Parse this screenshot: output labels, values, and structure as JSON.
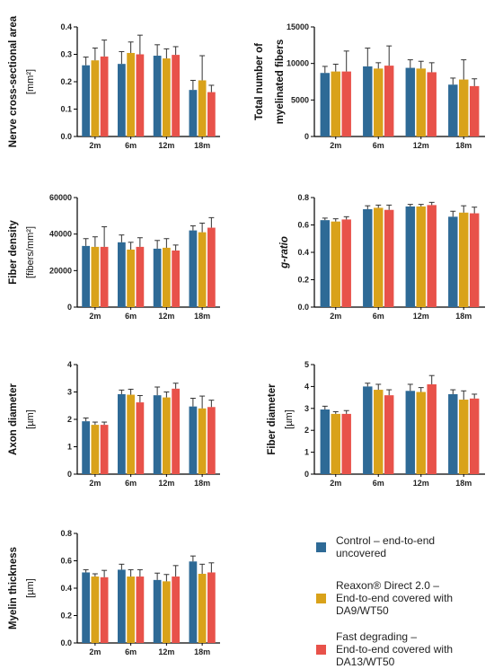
{
  "colors": {
    "control": "#2e6a96",
    "reaxon": "#d9a21a",
    "fast": "#e8524a",
    "axis": "#000000"
  },
  "legend": [
    {
      "series_index": 0,
      "lines": [
        "Control – end-to-end",
        "uncovered"
      ]
    },
    {
      "series_index": 1,
      "lines": [
        "Reaxon® Direct 2.0 –",
        "End-to-end covered with",
        "DA9/WT50"
      ]
    },
    {
      "series_index": 2,
      "lines": [
        "Fast degrading –",
        "End-to-end covered with",
        "DA13/WT50"
      ]
    }
  ],
  "chart_data": [
    {
      "type": "bar",
      "ylabel": [
        "Nerve cross-sectional area"
      ],
      "yunit": "[mm²]",
      "categories": [
        "2m",
        "6m",
        "12m",
        "18m"
      ],
      "ylim": [
        0,
        0.4
      ],
      "yticks": [
        "0.0",
        "0.1",
        "0.2",
        "0.3",
        "0.4"
      ],
      "series": [
        {
          "values": [
            0.26,
            0.265,
            0.295,
            0.17
          ],
          "errors": [
            0.03,
            0.045,
            0.04,
            0.035
          ]
        },
        {
          "values": [
            0.278,
            0.305,
            0.285,
            0.205
          ],
          "errors": [
            0.045,
            0.04,
            0.035,
            0.09
          ]
        },
        {
          "values": [
            0.292,
            0.3,
            0.298,
            0.162
          ],
          "errors": [
            0.06,
            0.07,
            0.03,
            0.025
          ]
        }
      ]
    },
    {
      "type": "bar",
      "ylabel": [
        "Total number of",
        "myelinated fibers"
      ],
      "yunit": "",
      "categories": [
        "2m",
        "6m",
        "12m",
        "18m"
      ],
      "ylim": [
        0,
        15000
      ],
      "yticks": [
        "0",
        "5000",
        "10000",
        "15000"
      ],
      "series": [
        {
          "values": [
            8700,
            9600,
            9400,
            7100
          ],
          "errors": [
            900,
            2500,
            1100,
            900
          ]
        },
        {
          "values": [
            8900,
            9300,
            9300,
            7800
          ],
          "errors": [
            1000,
            800,
            1000,
            2700
          ]
        },
        {
          "values": [
            8900,
            9700,
            8800,
            6900
          ],
          "errors": [
            2800,
            2700,
            1300,
            1000
          ]
        }
      ]
    },
    {
      "type": "bar",
      "ylabel": [
        "Fiber density"
      ],
      "yunit": "[fibers/mm²]",
      "categories": [
        "2m",
        "6m",
        "12m",
        "18m"
      ],
      "ylim": [
        0,
        60000
      ],
      "yticks": [
        "0",
        "20000",
        "40000",
        "60000"
      ],
      "series": [
        {
          "values": [
            33500,
            35500,
            32000,
            42000
          ],
          "errors": [
            4000,
            4000,
            4500,
            2500
          ]
        },
        {
          "values": [
            33000,
            31500,
            32500,
            41000
          ],
          "errors": [
            5500,
            4000,
            5000,
            5000
          ]
        },
        {
          "values": [
            33000,
            33000,
            31000,
            43500
          ],
          "errors": [
            11000,
            5000,
            3000,
            5500
          ]
        }
      ]
    },
    {
      "type": "bar",
      "ylabel": [
        "g-ratio"
      ],
      "yunit": "",
      "categories": [
        "2m",
        "6m",
        "12m",
        "18m"
      ],
      "ylim": [
        0,
        0.8
      ],
      "yticks": [
        "0.0",
        "0.2",
        "0.4",
        "0.6",
        "0.8"
      ],
      "series": [
        {
          "values": [
            0.635,
            0.715,
            0.735,
            0.66
          ],
          "errors": [
            0.015,
            0.025,
            0.015,
            0.04
          ]
        },
        {
          "values": [
            0.625,
            0.725,
            0.735,
            0.69
          ],
          "errors": [
            0.02,
            0.02,
            0.015,
            0.05
          ]
        },
        {
          "values": [
            0.64,
            0.71,
            0.745,
            0.685
          ],
          "errors": [
            0.02,
            0.035,
            0.02,
            0.045
          ]
        }
      ]
    },
    {
      "type": "bar",
      "ylabel": [
        "Axon diameter"
      ],
      "yunit": "[µm]",
      "categories": [
        "2m",
        "6m",
        "12m",
        "18m"
      ],
      "ylim": [
        0,
        4
      ],
      "yticks": [
        "0",
        "1",
        "2",
        "3",
        "4"
      ],
      "series": [
        {
          "values": [
            1.93,
            2.92,
            2.88,
            2.47
          ],
          "errors": [
            0.12,
            0.15,
            0.3,
            0.3
          ]
        },
        {
          "values": [
            1.8,
            2.9,
            2.8,
            2.4
          ],
          "errors": [
            0.1,
            0.2,
            0.2,
            0.45
          ]
        },
        {
          "values": [
            1.8,
            2.62,
            3.12,
            2.45
          ],
          "errors": [
            0.1,
            0.25,
            0.2,
            0.25
          ]
        }
      ]
    },
    {
      "type": "bar",
      "ylabel": [
        "Fiber diameter"
      ],
      "yunit": "[µm]",
      "categories": [
        "2m",
        "6m",
        "12m",
        "18m"
      ],
      "ylim": [
        0,
        5
      ],
      "yticks": [
        "0",
        "1",
        "2",
        "3",
        "4",
        "5"
      ],
      "series": [
        {
          "values": [
            2.95,
            4.0,
            3.8,
            3.65
          ],
          "errors": [
            0.15,
            0.15,
            0.3,
            0.2
          ]
        },
        {
          "values": [
            2.75,
            3.85,
            3.75,
            3.4
          ],
          "errors": [
            0.1,
            0.25,
            0.2,
            0.4
          ]
        },
        {
          "values": [
            2.75,
            3.6,
            4.1,
            3.45
          ],
          "errors": [
            0.15,
            0.25,
            0.4,
            0.2
          ]
        }
      ]
    },
    {
      "type": "bar",
      "ylabel": [
        "Myelin thickness"
      ],
      "yunit": "[µm]",
      "categories": [
        "2m",
        "6m",
        "12m",
        "18m"
      ],
      "ylim": [
        0,
        0.8
      ],
      "yticks": [
        "0.0",
        "0.2",
        "0.4",
        "0.6",
        "0.8"
      ],
      "series": [
        {
          "values": [
            0.515,
            0.535,
            0.46,
            0.595
          ],
          "errors": [
            0.02,
            0.04,
            0.05,
            0.04
          ]
        },
        {
          "values": [
            0.485,
            0.485,
            0.45,
            0.505
          ],
          "errors": [
            0.02,
            0.05,
            0.05,
            0.07
          ]
        },
        {
          "values": [
            0.48,
            0.485,
            0.485,
            0.515
          ],
          "errors": [
            0.05,
            0.05,
            0.08,
            0.07
          ]
        }
      ]
    }
  ]
}
